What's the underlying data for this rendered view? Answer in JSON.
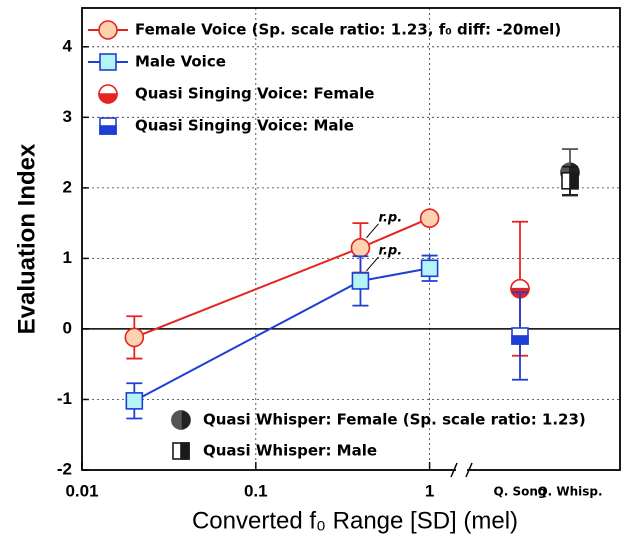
{
  "chart_data": {
    "type": "line",
    "x_label": "Converted f₀ Range [SD] (mel)",
    "y_label": "Evaluation Index",
    "xscale": "log",
    "xlim": [
      0.01,
      1.4
    ],
    "xticks": [
      0.01,
      0.1,
      1
    ],
    "categories": [
      "Q. Song",
      "Q. Whisp."
    ],
    "ylim": [
      -2,
      4.55
    ],
    "yticks": [
      -2,
      -1,
      0,
      1,
      2,
      3,
      4
    ],
    "grid": true,
    "annotations": [
      "r.p.",
      "r.p."
    ],
    "series": [
      {
        "name": "Female Voice (Sp. scale ratio: 1.23, f₀ diff: -20mel)",
        "color": "#e52421",
        "fill": "#fcd2b0",
        "marker": "circle",
        "x": [
          0.02,
          0.4,
          1
        ],
        "values": [
          -0.12,
          1.15,
          1.57
        ],
        "errors": [
          0.3,
          0.35,
          0.07
        ]
      },
      {
        "name": "Male Voice",
        "color": "#1d3fd6",
        "fill": "#b4f4f4",
        "marker": "square",
        "x": [
          0.02,
          0.4,
          1
        ],
        "values": [
          -1.02,
          0.68,
          0.86
        ],
        "errors": [
          0.25,
          0.35,
          0.18
        ]
      },
      {
        "name": "Quasi Singing Voice: Female",
        "color": "#e52421",
        "marker": "half-circle",
        "values": [
          0.57,
          null
        ],
        "errors": [
          0.95,
          null
        ]
      },
      {
        "name": "Quasi Singing Voice: Male",
        "color": "#1d3fd6",
        "marker": "half-square",
        "values": [
          -0.1,
          null
        ],
        "errors": [
          0.62,
          null
        ]
      },
      {
        "name": "Quasi Whisper: Female (Sp. scale ratio: 1.23)",
        "color": "#555555",
        "marker": "split-circle",
        "values": [
          null,
          2.22
        ],
        "errors": [
          null,
          0.33
        ]
      },
      {
        "name": "Quasi Whisper: Male",
        "color": "#1a1a1a",
        "marker": "split-square",
        "values": [
          null,
          2.1
        ],
        "errors": [
          null,
          0.2
        ]
      }
    ]
  }
}
